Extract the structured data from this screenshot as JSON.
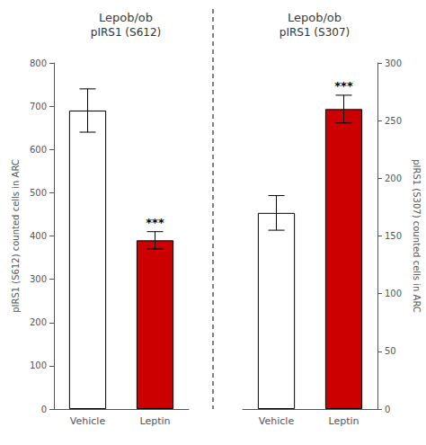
{
  "chart_data": [
    {
      "type": "bar",
      "title": "Lepob/ob",
      "subtitle": "pIRS1 (S612)",
      "categories": [
        "Vehicle",
        "Leptin"
      ],
      "values": [
        690,
        390
      ],
      "errors": [
        50,
        20
      ],
      "colors": [
        "white",
        "#cc0000"
      ],
      "ylabel": "pIRS1 (S612) counted cells in ARC",
      "ylim": [
        0,
        800
      ],
      "yticks": [
        0,
        100,
        200,
        300,
        400,
        500,
        600,
        700,
        800
      ],
      "annotations": [
        {
          "text": "***",
          "category": "Leptin"
        }
      ],
      "grid": false
    },
    {
      "type": "bar",
      "title": "Lepob/ob",
      "subtitle": "pIRS1 (S307)",
      "categories": [
        "Vehicle",
        "Leptin"
      ],
      "values": [
        170,
        260
      ],
      "errors": [
        15,
        12
      ],
      "colors": [
        "white",
        "#cc0000"
      ],
      "ylabel": "pIRS1 (S307) counted cells in ARC",
      "ylim": [
        0,
        300
      ],
      "yticks": [
        0,
        50,
        100,
        150,
        200,
        250,
        300
      ],
      "annotations": [
        {
          "text": "***",
          "category": "Leptin"
        }
      ],
      "grid": false
    }
  ]
}
